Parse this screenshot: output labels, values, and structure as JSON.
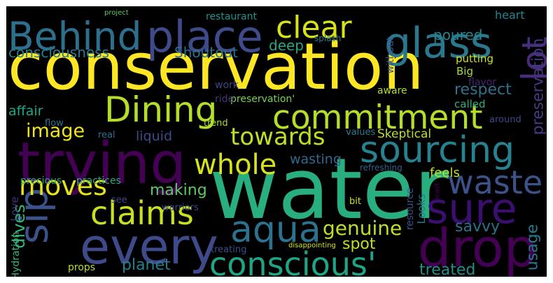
{
  "words": [
    {
      "text": "water",
      "color": "#29af7f",
      "rotated": false
    },
    {
      "text": "conservation",
      "color": "#fde725",
      "rotated": false
    },
    {
      "text": "every",
      "color": "#3e4a89",
      "rotated": false
    },
    {
      "text": "trying",
      "color": "#440154",
      "rotated": false
    },
    {
      "text": "drop",
      "color": "#440154",
      "rotated": false
    },
    {
      "text": "sourcing",
      "color": "#26828e",
      "rotated": false
    },
    {
      "text": "sip",
      "color": "#3b528b",
      "rotated": true
    },
    {
      "text": "glass",
      "color": "#2a788e",
      "rotated": false
    },
    {
      "text": "place",
      "color": "#3e4a89",
      "rotated": false
    },
    {
      "text": "Behind",
      "color": "#2d708e",
      "rotated": false
    },
    {
      "text": "commitment",
      "color": "#b5de2b",
      "rotated": false
    },
    {
      "text": "Dining",
      "color": "#b5de2b",
      "rotated": false
    },
    {
      "text": "sure",
      "color": "#3b0f70",
      "rotated": false
    },
    {
      "text": "aqua",
      "color": "#2c728e",
      "rotated": false
    },
    {
      "text": "claims",
      "color": "#c8e020",
      "rotated": false
    },
    {
      "text": "conscious'",
      "color": "#20a486",
      "rotated": false
    },
    {
      "text": "waste",
      "color": "#3b528b",
      "rotated": false
    },
    {
      "text": "whole",
      "color": "#d8e219",
      "rotated": false
    },
    {
      "text": "clear",
      "color": "#d8e219",
      "rotated": false
    },
    {
      "text": "moves",
      "color": "#e5e419",
      "rotated": false
    },
    {
      "text": "lot",
      "color": "#472d7b",
      "rotated": true
    },
    {
      "text": "towards",
      "color": "#bddf26",
      "rotated": false
    },
    {
      "text": "genuine",
      "color": "#bddf26",
      "rotated": false
    },
    {
      "text": "image",
      "color": "#f1e51d",
      "rotated": false
    },
    {
      "text": "planet",
      "color": "#277f8e",
      "rotated": false
    },
    {
      "text": "making",
      "color": "#5ec962",
      "rotated": false
    },
    {
      "text": "savvy",
      "color": "#2c728e",
      "rotated": false
    },
    {
      "text": "dives",
      "color": "#35b779",
      "rotated": true
    },
    {
      "text": "spot",
      "color": "#c2df23",
      "rotated": false
    },
    {
      "text": "treated",
      "color": "#21918c",
      "rotated": false
    },
    {
      "text": "usage",
      "color": "#2a788e",
      "rotated": true
    },
    {
      "text": "respect",
      "color": "#2c728e",
      "rotated": false
    },
    {
      "text": "preservation",
      "color": "#443983",
      "rotated": true
    },
    {
      "text": "consciousness",
      "color": "#277f8e",
      "rotated": false
    },
    {
      "text": "Shoutout",
      "color": "#2c728e",
      "rotated": false
    },
    {
      "text": "deep",
      "color": "#22a884",
      "rotated": false
    },
    {
      "text": "poured",
      "color": "#25858e",
      "rotated": false
    },
    {
      "text": "heart",
      "color": "#25848e",
      "rotated": false
    },
    {
      "text": "liquid",
      "color": "#3e4989",
      "rotated": false
    },
    {
      "text": "wasting",
      "color": "#31688e",
      "rotated": false
    },
    {
      "text": "feels",
      "color": "#c0df25",
      "rotated": false
    },
    {
      "text": "affair",
      "color": "#22a785",
      "rotated": false
    },
    {
      "text": "Skeptical",
      "color": "#bddf26",
      "rotated": false
    },
    {
      "text": "restaurant",
      "color": "#21918c",
      "rotated": false
    },
    {
      "text": "putting",
      "color": "#cae11f",
      "rotated": false
    },
    {
      "text": "Big",
      "color": "#a5db36",
      "rotated": false
    },
    {
      "text": "flavor",
      "color": "#482475",
      "rotated": false
    },
    {
      "text": "called",
      "color": "#2db27d",
      "rotated": false
    },
    {
      "text": "preservation'",
      "color": "#7ad151",
      "rotated": false
    },
    {
      "text": "aware",
      "color": "#addc30",
      "rotated": false
    },
    {
      "text": "work",
      "color": "#3f4788",
      "rotated": false
    },
    {
      "text": "ride",
      "color": "#46337f",
      "rotated": false
    },
    {
      "text": "flow",
      "color": "#2c738e",
      "rotated": false
    },
    {
      "text": "real",
      "color": "#2e6f8e",
      "rotated": false
    },
    {
      "text": "trend",
      "color": "#addc30",
      "rotated": false
    },
    {
      "text": "values",
      "color": "#287c8e",
      "rotated": false
    },
    {
      "text": "around",
      "color": "#3f4889",
      "rotated": false
    },
    {
      "text": "refreshing",
      "color": "#355f8d",
      "rotated": false
    },
    {
      "text": "precious",
      "color": "#22a884",
      "rotated": false
    },
    {
      "text": "practices",
      "color": "#27ad81",
      "rotated": false
    },
    {
      "text": "Love",
      "color": "#46327e",
      "rotated": true
    },
    {
      "text": "see",
      "color": "#3f4889",
      "rotated": false
    },
    {
      "text": "bit",
      "color": "#c8e020",
      "rotated": false
    },
    {
      "text": "Looks",
      "color": "#2a788e",
      "rotated": true
    },
    {
      "text": "resource",
      "color": "#3b528b",
      "rotated": true
    },
    {
      "text": "least",
      "color": "#440154",
      "rotated": true
    },
    {
      "text": "warriors",
      "color": "#3e4a89",
      "rotated": false
    },
    {
      "text": "Hydration",
      "color": "#35b779",
      "rotated": true
    },
    {
      "text": "props",
      "color": "#b8de29",
      "rotated": false
    },
    {
      "text": "treating",
      "color": "#3c4f8a",
      "rotated": false
    },
    {
      "text": "disappointing",
      "color": "#d2e21b",
      "rotated": false
    },
    {
      "text": "splash",
      "color": "#297a8e",
      "rotated": false
    },
    {
      "text": "without",
      "color": "#3b528b",
      "rotated": true
    },
    {
      "text": "project",
      "color": "#5ec962",
      "rotated": false
    }
  ]
}
